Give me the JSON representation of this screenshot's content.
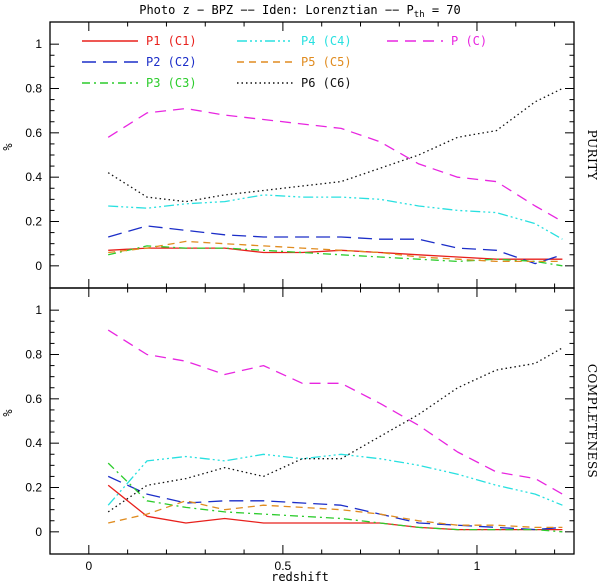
{
  "figure": {
    "title_main": "Photo z − BPZ −− Iden: Lorenztian −− P",
    "title_sub": "th",
    "title_end": " = 70",
    "xlabel": "redshift"
  },
  "chart_data": [
    {
      "type": "line",
      "panel": "top",
      "side_label": "PURITY",
      "ylabel": "%",
      "xlim": [
        -0.1,
        1.25
      ],
      "ylim": [
        -0.1,
        1.1
      ],
      "x_ticks": [
        0,
        0.5,
        1
      ],
      "x_tick_labels": [
        "0",
        "0.5",
        "1"
      ],
      "y_ticks": [
        0,
        0.2,
        0.4,
        0.6,
        0.8,
        1
      ],
      "y_tick_labels": [
        "0",
        "0.2",
        "0.4",
        "0.6",
        "0.8",
        "1"
      ],
      "grid": false,
      "legend": "top",
      "x": [
        0.05,
        0.15,
        0.25,
        0.35,
        0.45,
        0.55,
        0.65,
        0.75,
        0.85,
        0.95,
        1.05,
        1.15,
        1.22
      ],
      "series": [
        {
          "name": "P1 (C1)",
          "color": "#e8201c",
          "dash": "solid",
          "values": [
            0.07,
            0.08,
            0.08,
            0.08,
            0.06,
            0.06,
            0.07,
            0.06,
            0.05,
            0.04,
            0.03,
            0.03,
            0.03
          ]
        },
        {
          "name": "P2 (C2)",
          "color": "#1c2ec8",
          "dash": "longdash",
          "values": [
            0.13,
            0.18,
            0.16,
            0.14,
            0.13,
            0.13,
            0.13,
            0.12,
            0.12,
            0.08,
            0.07,
            0.01,
            0.05
          ]
        },
        {
          "name": "P3 (C3)",
          "color": "#2ccc2c",
          "dash": "dashdot",
          "values": [
            0.05,
            0.09,
            0.08,
            0.08,
            0.07,
            0.06,
            0.05,
            0.04,
            0.03,
            0.02,
            0.03,
            0.02,
            0.0
          ]
        },
        {
          "name": "P4 (C4)",
          "color": "#28e0e0",
          "dash": "dashdotdotdot",
          "values": [
            0.27,
            0.26,
            0.28,
            0.29,
            0.32,
            0.31,
            0.31,
            0.3,
            0.27,
            0.25,
            0.24,
            0.19,
            0.12
          ]
        },
        {
          "name": "P5 (C5)",
          "color": "#e08c20",
          "dash": "dashed",
          "values": [
            0.06,
            0.08,
            0.11,
            0.1,
            0.09,
            0.08,
            0.07,
            0.06,
            0.04,
            0.03,
            0.02,
            0.02,
            0.02
          ]
        },
        {
          "name": "P6 (C6)",
          "color": "#111111",
          "dash": "dotted",
          "values": [
            0.42,
            0.31,
            0.29,
            0.32,
            0.34,
            0.36,
            0.38,
            0.44,
            0.5,
            0.58,
            0.61,
            0.74,
            0.8
          ]
        },
        {
          "name": "P (C)",
          "color": "#e826e0",
          "dash": "bigdash",
          "values": [
            0.58,
            0.69,
            0.71,
            0.68,
            0.66,
            0.64,
            0.62,
            0.56,
            0.46,
            0.4,
            0.38,
            0.27,
            0.2
          ]
        }
      ]
    },
    {
      "type": "line",
      "panel": "bottom",
      "side_label": "COMPLETENESS",
      "ylabel": "%",
      "xlim": [
        -0.1,
        1.25
      ],
      "ylim": [
        -0.1,
        1.1
      ],
      "x_ticks": [
        0,
        0.5,
        1
      ],
      "x_tick_labels": [
        "0",
        "0.5",
        "1"
      ],
      "y_ticks": [
        0,
        0.2,
        0.4,
        0.6,
        0.8,
        1
      ],
      "y_tick_labels": [
        "0",
        "0.2",
        "0.4",
        "0.6",
        "0.8",
        "1"
      ],
      "grid": false,
      "x": [
        0.05,
        0.15,
        0.25,
        0.35,
        0.45,
        0.55,
        0.65,
        0.75,
        0.85,
        0.95,
        1.05,
        1.15,
        1.22
      ],
      "series": [
        {
          "name": "P1 (C1)",
          "color": "#e8201c",
          "dash": "solid",
          "values": [
            0.21,
            0.07,
            0.04,
            0.06,
            0.04,
            0.04,
            0.04,
            0.04,
            0.02,
            0.01,
            0.01,
            0.01,
            0.01
          ]
        },
        {
          "name": "P2 (C2)",
          "color": "#1c2ec8",
          "dash": "longdash",
          "values": [
            0.25,
            0.17,
            0.13,
            0.14,
            0.14,
            0.13,
            0.12,
            0.08,
            0.04,
            0.03,
            0.02,
            0.01,
            0.02
          ]
        },
        {
          "name": "P3 (C3)",
          "color": "#2ccc2c",
          "dash": "dashdot",
          "values": [
            0.31,
            0.14,
            0.11,
            0.09,
            0.08,
            0.07,
            0.06,
            0.04,
            0.02,
            0.01,
            0.01,
            0.01,
            0.0
          ]
        },
        {
          "name": "P4 (C4)",
          "color": "#28e0e0",
          "dash": "dashdotdotdot",
          "values": [
            0.12,
            0.32,
            0.34,
            0.32,
            0.35,
            0.33,
            0.35,
            0.33,
            0.3,
            0.26,
            0.21,
            0.17,
            0.12
          ]
        },
        {
          "name": "P5 (C5)",
          "color": "#e08c20",
          "dash": "dashed",
          "values": [
            0.04,
            0.08,
            0.14,
            0.1,
            0.12,
            0.11,
            0.1,
            0.08,
            0.05,
            0.03,
            0.03,
            0.02,
            0.02
          ]
        },
        {
          "name": "P6 (C6)",
          "color": "#111111",
          "dash": "dotted",
          "values": [
            0.09,
            0.21,
            0.24,
            0.29,
            0.25,
            0.33,
            0.33,
            0.43,
            0.53,
            0.65,
            0.73,
            0.76,
            0.83
          ]
        },
        {
          "name": "P (C)",
          "color": "#e826e0",
          "dash": "bigdash",
          "values": [
            0.91,
            0.8,
            0.77,
            0.71,
            0.75,
            0.67,
            0.67,
            0.58,
            0.48,
            0.36,
            0.27,
            0.24,
            0.17
          ]
        }
      ]
    }
  ]
}
